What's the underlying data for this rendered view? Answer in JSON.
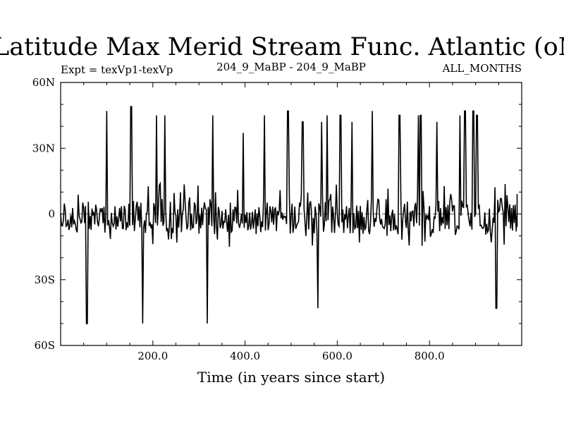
{
  "chart_data": {
    "type": "line",
    "title": "Latitude Max Merid Stream Func. Atlantic (oN)",
    "subtitle_left": "Expt = texVp1-texVp",
    "subtitle_center": "204_9_MaBP - 204_9_MaBP",
    "subtitle_right": "ALL_MONTHS",
    "xlabel": "Time (in years since start)",
    "ylabel": "",
    "xlim": [
      0,
      1000
    ],
    "ylim": [
      -60,
      60
    ],
    "x_ticks": [
      {
        "value": 200,
        "label": "200.0"
      },
      {
        "value": 400,
        "label": "400.0"
      },
      {
        "value": 600,
        "label": "600.0"
      },
      {
        "value": 800,
        "label": "800.0"
      }
    ],
    "y_ticks": [
      {
        "value": 60,
        "label": "60N"
      },
      {
        "value": 30,
        "label": "30N"
      },
      {
        "value": 0,
        "label": "0"
      },
      {
        "value": -30,
        "label": "30S"
      },
      {
        "value": -60,
        "label": "60S"
      }
    ],
    "zero_line": "dashed",
    "grid": false,
    "series": [
      {
        "noise_baseline": [
          5,
          2,
          -5,
          -7,
          3,
          -2,
          0,
          -8,
          4,
          -6,
          2,
          -3,
          -7,
          1,
          -5,
          6,
          -4,
          -7,
          2,
          -6
        ],
        "spikes": [
          {
            "x": 57,
            "y": -50
          },
          {
            "x": 100,
            "y": 47
          },
          {
            "x": 153,
            "y": 49
          },
          {
            "x": 178,
            "y": -50
          },
          {
            "x": 208,
            "y": 45
          },
          {
            "x": 226,
            "y": 45
          },
          {
            "x": 318,
            "y": -50
          },
          {
            "x": 330,
            "y": 45
          },
          {
            "x": 396,
            "y": 37
          },
          {
            "x": 442,
            "y": 45
          },
          {
            "x": 493,
            "y": 47
          },
          {
            "x": 525,
            "y": 42
          },
          {
            "x": 558,
            "y": -43
          },
          {
            "x": 566,
            "y": 42
          },
          {
            "x": 578,
            "y": 45
          },
          {
            "x": 607,
            "y": 45
          },
          {
            "x": 632,
            "y": 42
          },
          {
            "x": 676,
            "y": 47
          },
          {
            "x": 735,
            "y": 45
          },
          {
            "x": 776,
            "y": 45
          },
          {
            "x": 781,
            "y": 45
          },
          {
            "x": 816,
            "y": 42
          },
          {
            "x": 866,
            "y": 45
          },
          {
            "x": 877,
            "y": 47
          },
          {
            "x": 895,
            "y": 47
          },
          {
            "x": 903,
            "y": 45
          },
          {
            "x": 945,
            "y": -43
          }
        ]
      }
    ]
  }
}
